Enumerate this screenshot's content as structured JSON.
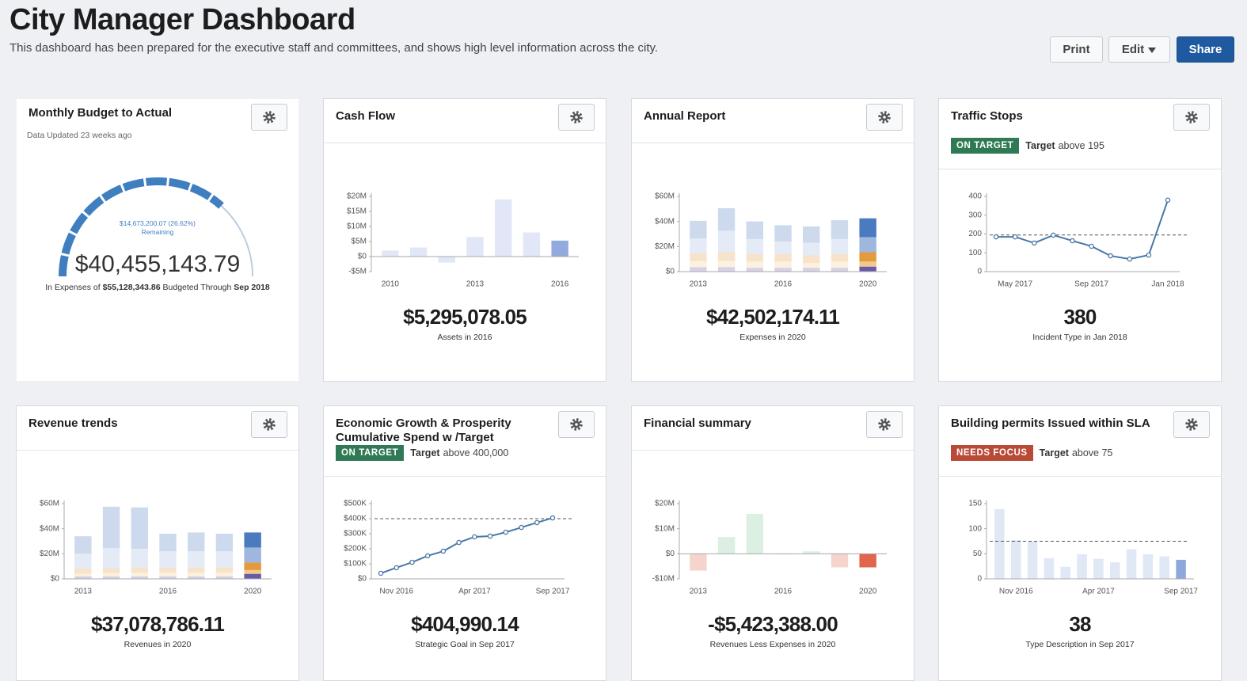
{
  "header": {
    "title": "City Manager Dashboard",
    "description": "This dashboard has been prepared for the executive staff and committees, and shows high level information across the city."
  },
  "buttons": [
    "Print",
    "Edit",
    "Share"
  ],
  "cards": [
    {
      "title": "Monthly Budget to Actual",
      "updated": "Data Updated 23 weeks ago",
      "chart": {
        "type": "gauge",
        "value": 40455143.79,
        "value_label": "$40,455,143.79",
        "max": 55128343.86,
        "max_label": "$55,128,343.86",
        "remaining": 14673200.07,
        "remaining_label": "$14,673,200.07 (26.62%)",
        "remaining_caption": "Remaining",
        "caption_parts": [
          "In Expenses of",
          "Budgeted Through",
          "Sep 2018"
        ],
        "color": "#3f7fc0",
        "track_color": "#b9cde0"
      }
    },
    {
      "title": "Cash Flow",
      "big_value": "$5,295,078.05",
      "big_caption": "Assets in 2016",
      "chart": {
        "type": "bar",
        "categories": [
          "2010",
          null,
          null,
          "2013",
          null,
          null,
          "2016"
        ],
        "values": [
          2,
          3,
          -2,
          6.5,
          19,
          8,
          5.3
        ],
        "ylim": [
          -5,
          20
        ],
        "yticks": [
          {
            "value": -5,
            "label": "-$5M"
          },
          {
            "value": 0,
            "label": "$0"
          },
          {
            "value": 5,
            "label": "$5M"
          },
          {
            "value": 10,
            "label": "$10M"
          },
          {
            "value": 15,
            "label": "$15M"
          },
          {
            "value": 20,
            "label": "$20M"
          }
        ],
        "color": "#94a9dd",
        "highlight_last": true
      }
    },
    {
      "title": "Annual Report",
      "big_value": "$42,502,174.11",
      "big_caption": "Expenses in 2020",
      "chart": {
        "type": "bar",
        "categories": [
          "2013",
          null,
          null,
          "2016",
          null,
          null,
          "2020"
        ],
        "series": [
          {
            "color": "#6b5aa8",
            "values": [
              3.5,
              3.6,
              3,
              3,
              3,
              3,
              4
            ]
          },
          {
            "color": "#f3c98b",
            "values": [
              5,
              5,
              5,
              5,
              4,
              5,
              4
            ]
          },
          {
            "color": "#e49b3c",
            "values": [
              6,
              7,
              6,
              6,
              6,
              6,
              7.5
            ]
          },
          {
            "color": "#9db7de",
            "values": [
              12,
              17,
              12,
              10,
              10,
              12,
              12
            ]
          },
          {
            "color": "#4a7bbf",
            "values": [
              14,
              18,
              14,
              13,
              13,
              15,
              15
            ]
          }
        ],
        "ylim": [
          0,
          60
        ],
        "yticks": [
          {
            "value": 0,
            "label": "$0"
          },
          {
            "value": 20,
            "label": "$20M"
          },
          {
            "value": 40,
            "label": "$40M"
          },
          {
            "value": 60,
            "label": "$60M"
          }
        ],
        "highlight_last": true
      }
    },
    {
      "title": "Traffic Stops",
      "status": "ON TARGET",
      "status_color": "#2f7a55",
      "target_word": "Target",
      "target_text": "above 195",
      "big_value": "380",
      "big_caption": "Incident Type in Jan 2018",
      "chart": {
        "type": "line",
        "categories": [
          null,
          "May 2017",
          null,
          null,
          null,
          "Sep 2017",
          null,
          null,
          null,
          "Jan 2018"
        ],
        "values": [
          185,
          185,
          152,
          194,
          164,
          135,
          84,
          67,
          88,
          380
        ],
        "ylim": [
          0,
          400
        ],
        "yticks": [
          0,
          100,
          200,
          300,
          400
        ],
        "target": 195,
        "color": "#4a78a8"
      }
    },
    {
      "title": "Revenue trends",
      "big_value": "$37,078,786.11",
      "big_caption": "Revenues in 2020",
      "chart": {
        "type": "bar",
        "categories": [
          "2013",
          null,
          null,
          "2016",
          null,
          null,
          "2020"
        ],
        "series": [
          {
            "color": "#6b5aa8",
            "values": [
              2,
              2,
              2,
              2,
              2,
              2,
              4
            ]
          },
          {
            "color": "#f3c98b",
            "values": [
              2,
              2.5,
              3,
              3,
              3,
              3,
              3
            ]
          },
          {
            "color": "#e49b3c",
            "values": [
              4,
              4,
              4,
              4,
              4,
              4,
              6
            ]
          },
          {
            "color": "#9db7de",
            "values": [
              12,
              16,
              15,
              13,
              13,
              13,
              12
            ]
          },
          {
            "color": "#4a7bbf",
            "values": [
              14,
              33,
              33,
              14,
              15,
              14,
              12
            ]
          }
        ],
        "ylim": [
          0,
          60
        ],
        "yticks": [
          {
            "value": 0,
            "label": "$0"
          },
          {
            "value": 20,
            "label": "$20M"
          },
          {
            "value": 40,
            "label": "$40M"
          },
          {
            "value": 60,
            "label": "$60M"
          }
        ],
        "highlight_last": true
      }
    },
    {
      "title": "Economic Growth & Prosperity Cumulative Spend w /Target",
      "status": "ON TARGET",
      "status_color": "#2f7a55",
      "target_word": "Target",
      "target_text": "above 400,000",
      "big_value": "$404,990.14",
      "big_caption": "Strategic Goal in Sep 2017",
      "chart": {
        "type": "line",
        "categories": [
          null,
          "Nov 2016",
          null,
          null,
          null,
          null,
          "Apr 2017",
          null,
          null,
          null,
          null,
          "Sep 2017"
        ],
        "values": [
          37,
          74,
          110,
          153,
          184,
          242,
          279,
          284,
          310,
          342,
          374,
          405
        ],
        "ylim": [
          0,
          500
        ],
        "yticks": [
          {
            "value": 0,
            "label": "$0"
          },
          {
            "value": 100,
            "label": "$100K"
          },
          {
            "value": 200,
            "label": "$200K"
          },
          {
            "value": 300,
            "label": "$300K"
          },
          {
            "value": 400,
            "label": "$400K"
          },
          {
            "value": 500,
            "label": "$500K"
          }
        ],
        "target": 400,
        "color": "#4a78a8"
      }
    },
    {
      "title": "Financial summary",
      "big_value": "-$5,423,388.00",
      "big_caption": "Revenues Less Expenses in 2020",
      "chart": {
        "type": "bar",
        "categories": [
          "2013",
          null,
          null,
          "2016",
          null,
          null,
          "2020"
        ],
        "values": [
          -6.7,
          6.7,
          15.9,
          -0.1,
          1,
          -5.4,
          -5.42
        ],
        "ylim": [
          -10,
          20
        ],
        "yticks": [
          {
            "value": -10,
            "label": "-$10M"
          },
          {
            "value": 0,
            "label": "$0"
          },
          {
            "value": 10,
            "label": "$10M"
          },
          {
            "value": 20,
            "label": "$20M"
          }
        ],
        "positive_color": "#7cc49a",
        "negative_color": "#e0664e",
        "highlight_last": true
      }
    },
    {
      "title": "Building permits Issued within SLA",
      "status": "NEEDS FOCUS",
      "status_color": "#b84a36",
      "target_word": "Target",
      "target_text": "above 75",
      "big_value": "38",
      "big_caption": "Type Description in Sep 2017",
      "chart": {
        "type": "bar",
        "categories": [
          null,
          "Nov 2016",
          null,
          null,
          null,
          null,
          "Apr 2017",
          null,
          null,
          null,
          null,
          "Sep 2017"
        ],
        "values": [
          139,
          77,
          75,
          41,
          24,
          49,
          40,
          33,
          59,
          49,
          45,
          38
        ],
        "ylim": [
          0,
          150
        ],
        "yticks": [
          0,
          50,
          100,
          150
        ],
        "target": 75,
        "color": "#8fa8dc",
        "highlight_last": true
      }
    }
  ]
}
